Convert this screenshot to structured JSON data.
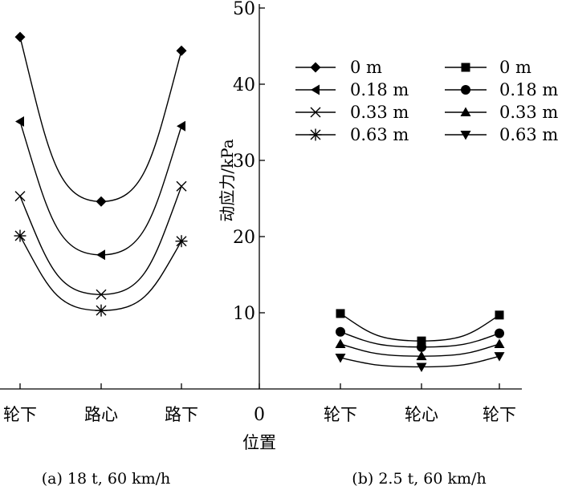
{
  "chart_data": {
    "type": "line",
    "ylabel": "动应力/kPa",
    "xlabel": "位置",
    "ylim": [
      0,
      50
    ],
    "yticks": [
      10,
      20,
      30,
      40,
      50
    ],
    "origin_label": "0",
    "grid": false,
    "panels": [
      {
        "name": "a",
        "caption": "(a) 18 t, 60 km/h",
        "categories": [
          "轮下",
          "路心",
          "路下"
        ],
        "series": [
          {
            "name": "0 m",
            "marker": "diamond",
            "values": [
              46.2,
              24.6,
              44.4
            ]
          },
          {
            "name": "0.18 m",
            "marker": "triangle-left",
            "values": [
              35.1,
              17.6,
              34.5
            ]
          },
          {
            "name": "0.33 m",
            "marker": "x",
            "values": [
              25.3,
              12.4,
              26.6
            ]
          },
          {
            "name": "0.63 m",
            "marker": "asterisk",
            "values": [
              20.1,
              10.3,
              19.4
            ]
          }
        ]
      },
      {
        "name": "b",
        "caption": "(b) 2.5 t, 60 km/h",
        "categories": [
          "轮下",
          "轮心",
          "轮下"
        ],
        "series": [
          {
            "name": "0 m",
            "marker": "square",
            "values": [
              9.9,
              6.3,
              9.7
            ]
          },
          {
            "name": "0.18 m",
            "marker": "circle",
            "values": [
              7.5,
              5.5,
              7.3
            ]
          },
          {
            "name": "0.33 m",
            "marker": "triangle-up",
            "values": [
              5.9,
              4.3,
              5.9
            ]
          },
          {
            "name": "0.63 m",
            "marker": "triangle-down",
            "values": [
              4.1,
              2.9,
              4.3
            ]
          }
        ]
      }
    ]
  }
}
